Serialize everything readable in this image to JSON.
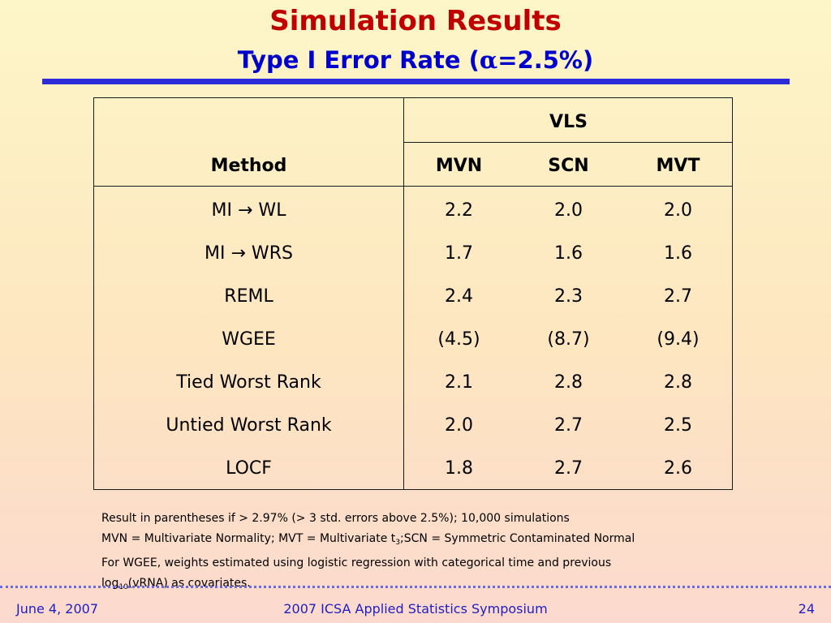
{
  "slide": {
    "title": "Simulation Results",
    "subtitle_prefix": "Type I Error Rate (",
    "subtitle_alpha": "α",
    "subtitle_suffix": "=2.5%)"
  },
  "table": {
    "group_header": "VLS",
    "method_header": "Method",
    "columns": [
      "MVN",
      "SCN",
      "MVT"
    ],
    "rows": [
      {
        "method": "MI → WL",
        "values": [
          "2.2",
          "2.0",
          "2.0"
        ]
      },
      {
        "method": "MI → WRS",
        "values": [
          "1.7",
          "1.6",
          "1.6"
        ]
      },
      {
        "method": "REML",
        "values": [
          "2.4",
          "2.3",
          "2.7"
        ]
      },
      {
        "method": "WGEE",
        "values": [
          "(4.5)",
          "(8.7)",
          "(9.4)"
        ]
      },
      {
        "method": "Tied Worst Rank",
        "values": [
          "2.1",
          "2.8",
          "2.8"
        ]
      },
      {
        "method": "Untied Worst Rank",
        "values": [
          "2.0",
          "2.7",
          "2.5"
        ]
      },
      {
        "method": "LOCF",
        "values": [
          "1.8",
          "2.7",
          "2.6"
        ]
      }
    ]
  },
  "notes": {
    "line1": "Result in parentheses if > 2.97% (> 3 std. errors above 2.5%); 10,000 simulations",
    "line2_a": "MVN = Multivariate Normality; MVT = Multivariate t",
    "line2_sub": "3",
    "line2_b": ";SCN = Symmetric Contaminated Normal",
    "line3": "For WGEE, weights estimated using logistic regression with categorical time and previous",
    "line4_a": "log",
    "line4_sub": "10",
    "line4_b": "(vRNA) as covariates."
  },
  "footer": {
    "date": "June 4, 2007",
    "event": "2007 ICSA Applied Statistics Symposium",
    "page_number": "24"
  },
  "colors": {
    "title": "#c00000",
    "subtitle": "#0000cc",
    "rule": "#2b2bd9",
    "footer_text": "#2020c0"
  }
}
